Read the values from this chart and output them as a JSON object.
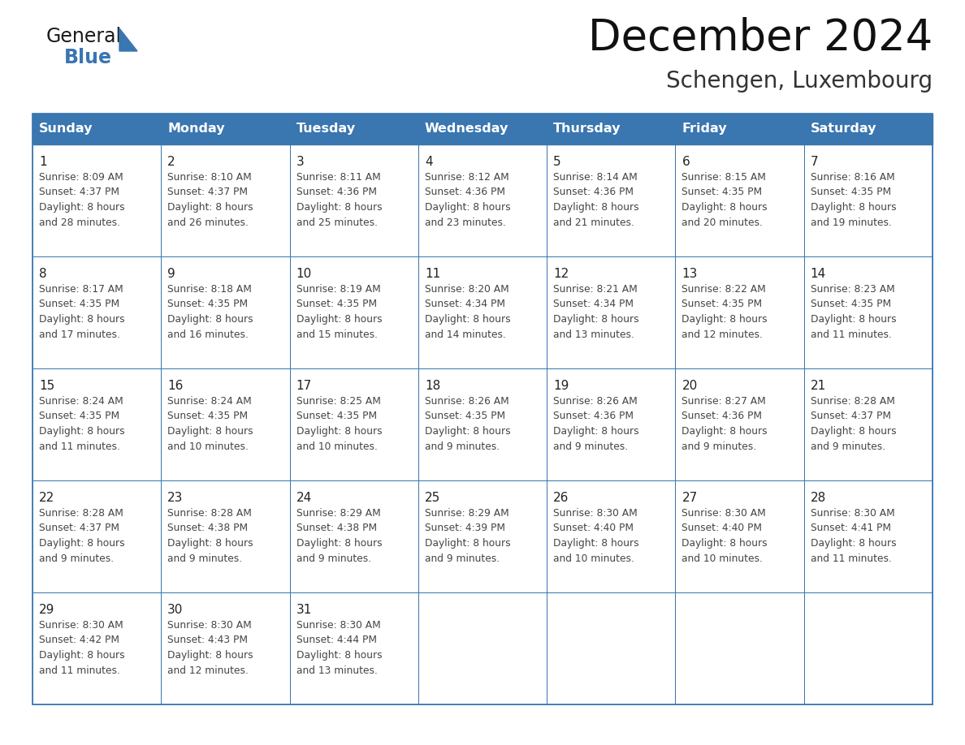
{
  "title": "December 2024",
  "subtitle": "Schengen, Luxembourg",
  "days_of_week": [
    "Sunday",
    "Monday",
    "Tuesday",
    "Wednesday",
    "Thursday",
    "Friday",
    "Saturday"
  ],
  "header_bg": "#3a76b0",
  "header_text_color": "#FFFFFF",
  "cell_border_color": "#3a76b0",
  "day_number_color": "#222222",
  "cell_text_color": "#444444",
  "background_color": "#FFFFFF",
  "logo_color_general": "#1a1a1a",
  "logo_color_blue": "#3a76b0",
  "calendar_data": [
    [
      {
        "day": 1,
        "sunrise": "8:09 AM",
        "sunset": "4:37 PM",
        "daylight_hours": 8,
        "daylight_minutes": 28
      },
      {
        "day": 2,
        "sunrise": "8:10 AM",
        "sunset": "4:37 PM",
        "daylight_hours": 8,
        "daylight_minutes": 26
      },
      {
        "day": 3,
        "sunrise": "8:11 AM",
        "sunset": "4:36 PM",
        "daylight_hours": 8,
        "daylight_minutes": 25
      },
      {
        "day": 4,
        "sunrise": "8:12 AM",
        "sunset": "4:36 PM",
        "daylight_hours": 8,
        "daylight_minutes": 23
      },
      {
        "day": 5,
        "sunrise": "8:14 AM",
        "sunset": "4:36 PM",
        "daylight_hours": 8,
        "daylight_minutes": 21
      },
      {
        "day": 6,
        "sunrise": "8:15 AM",
        "sunset": "4:35 PM",
        "daylight_hours": 8,
        "daylight_minutes": 20
      },
      {
        "day": 7,
        "sunrise": "8:16 AM",
        "sunset": "4:35 PM",
        "daylight_hours": 8,
        "daylight_minutes": 19
      }
    ],
    [
      {
        "day": 8,
        "sunrise": "8:17 AM",
        "sunset": "4:35 PM",
        "daylight_hours": 8,
        "daylight_minutes": 17
      },
      {
        "day": 9,
        "sunrise": "8:18 AM",
        "sunset": "4:35 PM",
        "daylight_hours": 8,
        "daylight_minutes": 16
      },
      {
        "day": 10,
        "sunrise": "8:19 AM",
        "sunset": "4:35 PM",
        "daylight_hours": 8,
        "daylight_minutes": 15
      },
      {
        "day": 11,
        "sunrise": "8:20 AM",
        "sunset": "4:34 PM",
        "daylight_hours": 8,
        "daylight_minutes": 14
      },
      {
        "day": 12,
        "sunrise": "8:21 AM",
        "sunset": "4:34 PM",
        "daylight_hours": 8,
        "daylight_minutes": 13
      },
      {
        "day": 13,
        "sunrise": "8:22 AM",
        "sunset": "4:35 PM",
        "daylight_hours": 8,
        "daylight_minutes": 12
      },
      {
        "day": 14,
        "sunrise": "8:23 AM",
        "sunset": "4:35 PM",
        "daylight_hours": 8,
        "daylight_minutes": 11
      }
    ],
    [
      {
        "day": 15,
        "sunrise": "8:24 AM",
        "sunset": "4:35 PM",
        "daylight_hours": 8,
        "daylight_minutes": 11
      },
      {
        "day": 16,
        "sunrise": "8:24 AM",
        "sunset": "4:35 PM",
        "daylight_hours": 8,
        "daylight_minutes": 10
      },
      {
        "day": 17,
        "sunrise": "8:25 AM",
        "sunset": "4:35 PM",
        "daylight_hours": 8,
        "daylight_minutes": 10
      },
      {
        "day": 18,
        "sunrise": "8:26 AM",
        "sunset": "4:35 PM",
        "daylight_hours": 8,
        "daylight_minutes": 9
      },
      {
        "day": 19,
        "sunrise": "8:26 AM",
        "sunset": "4:36 PM",
        "daylight_hours": 8,
        "daylight_minutes": 9
      },
      {
        "day": 20,
        "sunrise": "8:27 AM",
        "sunset": "4:36 PM",
        "daylight_hours": 8,
        "daylight_minutes": 9
      },
      {
        "day": 21,
        "sunrise": "8:28 AM",
        "sunset": "4:37 PM",
        "daylight_hours": 8,
        "daylight_minutes": 9
      }
    ],
    [
      {
        "day": 22,
        "sunrise": "8:28 AM",
        "sunset": "4:37 PM",
        "daylight_hours": 8,
        "daylight_minutes": 9
      },
      {
        "day": 23,
        "sunrise": "8:28 AM",
        "sunset": "4:38 PM",
        "daylight_hours": 8,
        "daylight_minutes": 9
      },
      {
        "day": 24,
        "sunrise": "8:29 AM",
        "sunset": "4:38 PM",
        "daylight_hours": 8,
        "daylight_minutes": 9
      },
      {
        "day": 25,
        "sunrise": "8:29 AM",
        "sunset": "4:39 PM",
        "daylight_hours": 8,
        "daylight_minutes": 9
      },
      {
        "day": 26,
        "sunrise": "8:30 AM",
        "sunset": "4:40 PM",
        "daylight_hours": 8,
        "daylight_minutes": 10
      },
      {
        "day": 27,
        "sunrise": "8:30 AM",
        "sunset": "4:40 PM",
        "daylight_hours": 8,
        "daylight_minutes": 10
      },
      {
        "day": 28,
        "sunrise": "8:30 AM",
        "sunset": "4:41 PM",
        "daylight_hours": 8,
        "daylight_minutes": 11
      }
    ],
    [
      {
        "day": 29,
        "sunrise": "8:30 AM",
        "sunset": "4:42 PM",
        "daylight_hours": 8,
        "daylight_minutes": 11
      },
      {
        "day": 30,
        "sunrise": "8:30 AM",
        "sunset": "4:43 PM",
        "daylight_hours": 8,
        "daylight_minutes": 12
      },
      {
        "day": 31,
        "sunrise": "8:30 AM",
        "sunset": "4:44 PM",
        "daylight_hours": 8,
        "daylight_minutes": 13
      },
      null,
      null,
      null,
      null
    ]
  ]
}
